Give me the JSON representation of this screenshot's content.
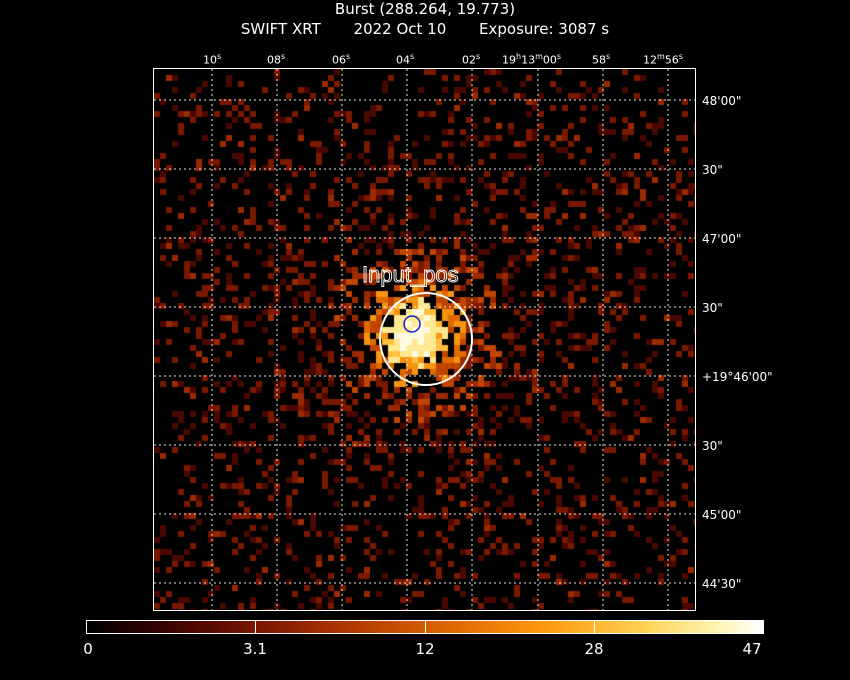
{
  "title": {
    "object": "Burst (288.264, 19.773)",
    "instrument": "SWIFT XRT",
    "date": "2022 Oct 10",
    "exposure": "Exposure: 3087 s"
  },
  "ra_ticks": [
    "10",
    "08",
    "06",
    "04",
    "02",
    "19h13m00",
    "58",
    "12m56"
  ],
  "dec_ticks": [
    "48'00\"",
    "30\"",
    "47'00\"",
    "30\"",
    "+19°46'00\"",
    "30\"",
    "45'00\"",
    "44'30\""
  ],
  "annotations": {
    "region_label": "Input_pos"
  },
  "colorbar": {
    "labels": [
      "0",
      "3.1",
      "12",
      "28",
      "47"
    ]
  }
}
